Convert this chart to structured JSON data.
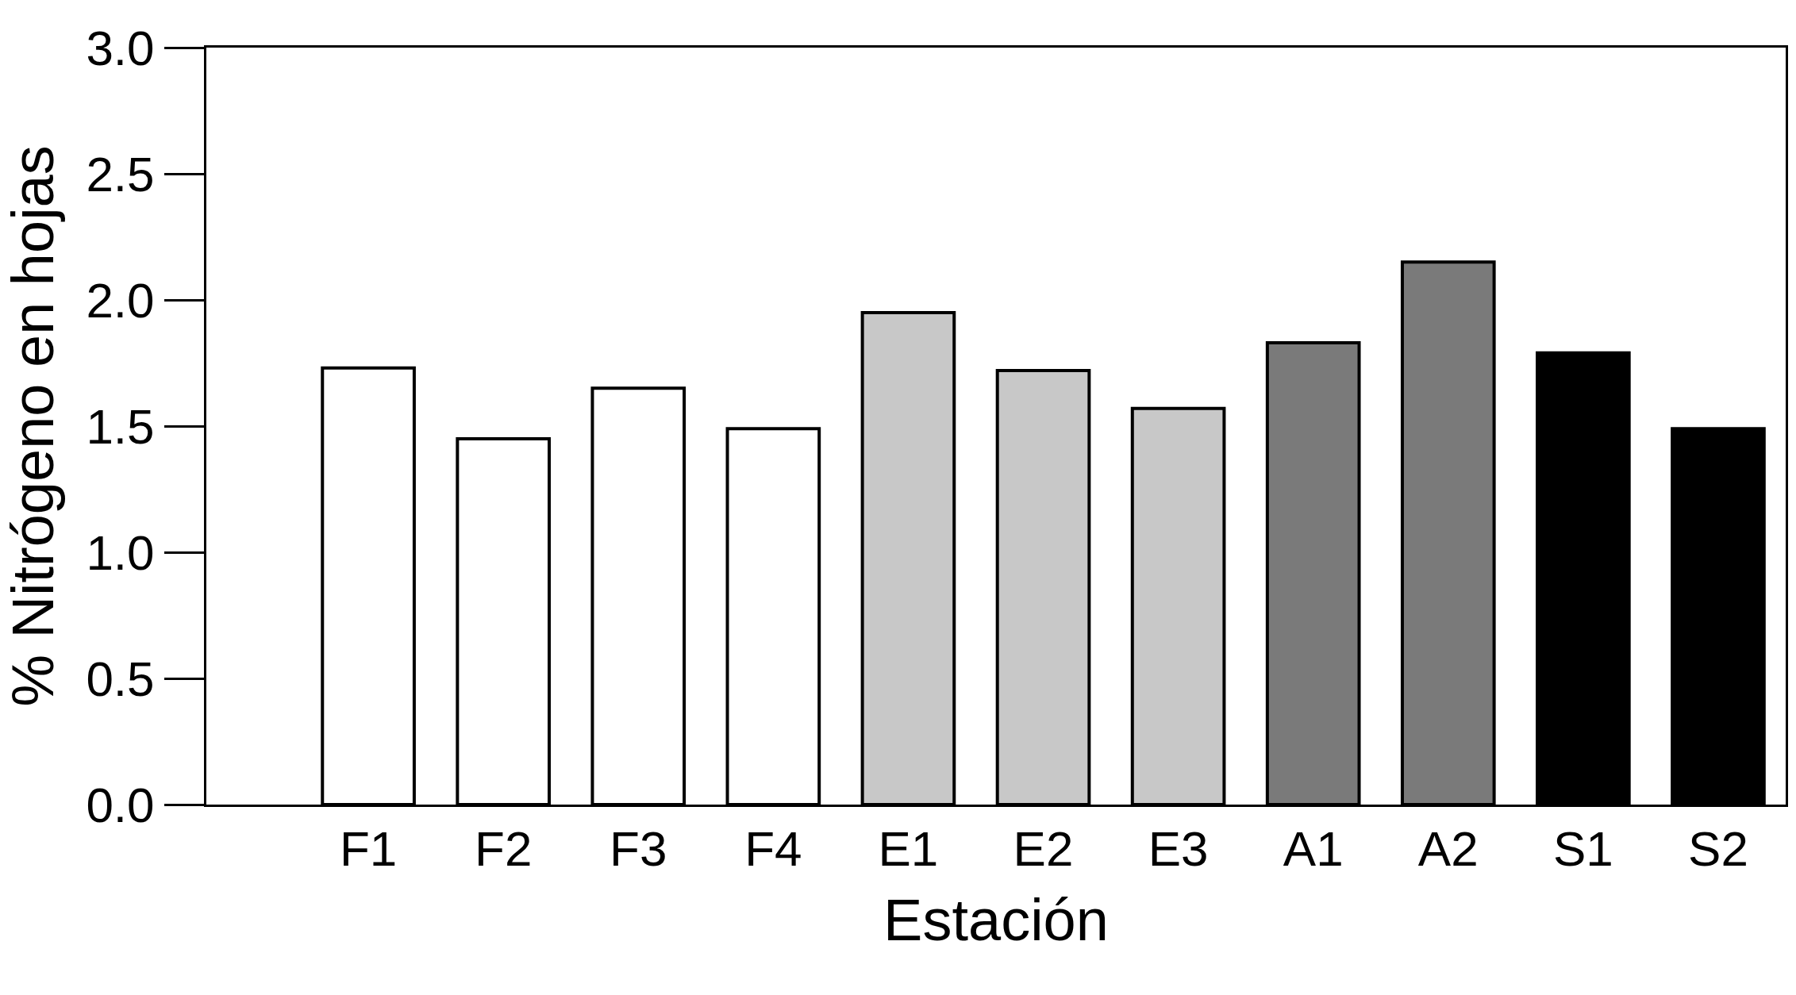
{
  "chart_data": {
    "type": "bar",
    "xlabel": "Estación",
    "ylabel": "% Nitrógeno en hojas",
    "categories": [
      "F1",
      "F2",
      "F3",
      "F4",
      "E1",
      "E2",
      "E3",
      "A1",
      "A2",
      "S1",
      "S2"
    ],
    "values": [
      1.73,
      1.45,
      1.65,
      1.49,
      1.95,
      1.72,
      1.57,
      1.83,
      2.15,
      1.79,
      1.49
    ],
    "colors": [
      "#ffffff",
      "#ffffff",
      "#ffffff",
      "#ffffff",
      "#c8c8c8",
      "#c8c8c8",
      "#c8c8c8",
      "#7a7a7a",
      "#7a7a7a",
      "#000000",
      "#000000"
    ],
    "ylim": [
      0,
      3.0
    ],
    "yticks": [
      {
        "value": 0,
        "label": "0.0"
      },
      {
        "value": 0.5,
        "label": "0.5"
      },
      {
        "value": 1.0,
        "label": "1.0"
      },
      {
        "value": 1.5,
        "label": "1.5"
      },
      {
        "value": 2.0,
        "label": "2.0"
      },
      {
        "value": 2.5,
        "label": "2.5"
      },
      {
        "value": 3.0,
        "label": "3.0"
      }
    ],
    "legend": false
  }
}
